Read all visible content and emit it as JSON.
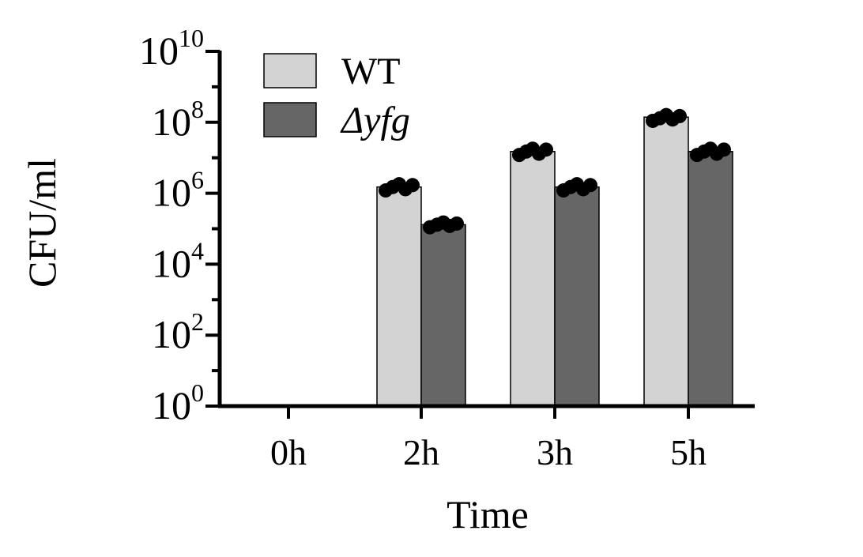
{
  "chart_data": {
    "type": "bar",
    "title": "",
    "xlabel": "Time",
    "ylabel": "CFU/ml",
    "categories": [
      "0h",
      "2h",
      "3h",
      "5h"
    ],
    "y_scale": "log10",
    "ylim": [
      1,
      10000000000
    ],
    "y_ticks": [
      {
        "base": "10",
        "exp": "0"
      },
      {
        "base": "10",
        "exp": "2"
      },
      {
        "base": "10",
        "exp": "4"
      },
      {
        "base": "10",
        "exp": "6"
      },
      {
        "base": "10",
        "exp": "8"
      },
      {
        "base": "10",
        "exp": "10"
      }
    ],
    "legend_position": "top-left",
    "series": [
      {
        "name": "WT",
        "color": "#d3d3d3",
        "values": [
          null,
          1500000,
          15000000,
          140000000
        ],
        "points": [
          [],
          [
            1200000,
            1500000,
            1800000,
            1300000,
            1700000
          ],
          [
            12000000,
            15000000,
            18000000,
            13000000,
            17000000
          ],
          [
            110000000,
            130000000,
            160000000,
            120000000,
            150000000
          ]
        ]
      },
      {
        "name": "Δyfg",
        "color": "#666666",
        "values": [
          null,
          130000,
          1500000,
          15000000
        ],
        "points": [
          [],
          [
            110000,
            130000,
            150000,
            120000,
            140000
          ],
          [
            1200000,
            1500000,
            1800000,
            1300000,
            1700000
          ],
          [
            12000000,
            15000000,
            18000000,
            13000000,
            17000000
          ]
        ]
      }
    ]
  }
}
